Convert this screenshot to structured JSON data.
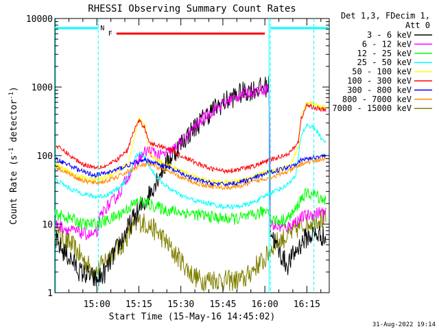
{
  "chart_data": {
    "type": "line",
    "title": "RHESSI Observing Summary Count Rates",
    "xlabel": "Start Time (15-May-16 14:45:02)",
    "ylabel_main": "Count Rate (s",
    "ylabel_sup1": "-1",
    "ylabel_mid": " detector",
    "ylabel_sup2": "-1",
    "ylabel_end": ")",
    "yscale": "log",
    "ylim": [
      1,
      10000
    ],
    "xlim_minutes": [
      0,
      98
    ],
    "y_ticks": [
      {
        "value": 1,
        "label": "1"
      },
      {
        "value": 10,
        "label": "10"
      },
      {
        "value": 100,
        "label": "100"
      },
      {
        "value": 1000,
        "label": "1000"
      },
      {
        "value": 10000,
        "label": "10000"
      }
    ],
    "x_ticks": [
      {
        "minute": 15,
        "label": "15:00"
      },
      {
        "minute": 30,
        "label": "15:15"
      },
      {
        "minute": 45,
        "label": "15:30"
      },
      {
        "minute": 60,
        "label": "15:45"
      },
      {
        "minute": 75,
        "label": "16:00"
      },
      {
        "minute": 90,
        "label": "16:15"
      }
    ],
    "legend_header": [
      "Det 1,3, FDecim 1,",
      "Att 0"
    ],
    "legend_position": "right",
    "series": [
      {
        "name": "3 - 6 keV",
        "color": "#000000",
        "points": [
          [
            0,
            6
          ],
          [
            3,
            4
          ],
          [
            6,
            3
          ],
          [
            9,
            2
          ],
          [
            12,
            1.8
          ],
          [
            15,
            1.5
          ],
          [
            18,
            2
          ],
          [
            20,
            3
          ],
          [
            24,
            6
          ],
          [
            28,
            12
          ],
          [
            32,
            20
          ],
          [
            35,
            35
          ],
          [
            38,
            60
          ],
          [
            42,
            100
          ],
          [
            46,
            170
          ],
          [
            50,
            260
          ],
          [
            54,
            380
          ],
          [
            58,
            520
          ],
          [
            62,
            650
          ],
          [
            66,
            800
          ],
          [
            70,
            900
          ],
          [
            74,
            980
          ],
          [
            76.5,
            1050
          ],
          [
            77,
            8
          ],
          [
            80,
            4
          ],
          [
            83,
            2.5
          ],
          [
            86,
            4
          ],
          [
            89,
            6
          ],
          [
            92,
            7
          ],
          [
            95,
            7
          ],
          [
            97,
            6
          ]
        ]
      },
      {
        "name": "6 - 12 keV",
        "color": "#ff00ff",
        "points": [
          [
            0,
            10
          ],
          [
            3,
            9
          ],
          [
            6,
            8
          ],
          [
            9,
            7.5
          ],
          [
            12,
            7
          ],
          [
            15,
            7
          ],
          [
            16,
            12
          ],
          [
            18,
            17
          ],
          [
            20,
            20
          ],
          [
            23,
            28
          ],
          [
            26,
            50
          ],
          [
            30,
            90
          ],
          [
            33,
            120
          ],
          [
            36,
            110
          ],
          [
            38,
            100
          ],
          [
            42,
            120
          ],
          [
            46,
            170
          ],
          [
            50,
            260
          ],
          [
            54,
            380
          ],
          [
            58,
            500
          ],
          [
            62,
            630
          ],
          [
            66,
            760
          ],
          [
            70,
            860
          ],
          [
            74,
            930
          ],
          [
            76.5,
            980
          ],
          [
            77,
            10
          ],
          [
            80,
            9
          ],
          [
            83,
            9
          ],
          [
            86,
            11
          ],
          [
            89,
            13
          ],
          [
            92,
            14
          ],
          [
            95,
            15
          ],
          [
            97,
            14
          ]
        ]
      },
      {
        "name": "12 - 25 keV",
        "color": "#00ff00",
        "points": [
          [
            0,
            14
          ],
          [
            3,
            13
          ],
          [
            6,
            12
          ],
          [
            10,
            10
          ],
          [
            14,
            10
          ],
          [
            18,
            11
          ],
          [
            22,
            13
          ],
          [
            26,
            17
          ],
          [
            30,
            22
          ],
          [
            33,
            20
          ],
          [
            36,
            18
          ],
          [
            40,
            16
          ],
          [
            45,
            15
          ],
          [
            50,
            14
          ],
          [
            55,
            13
          ],
          [
            60,
            12
          ],
          [
            65,
            12
          ],
          [
            70,
            13
          ],
          [
            74,
            15
          ],
          [
            76.5,
            17
          ],
          [
            77,
            12
          ],
          [
            80,
            11
          ],
          [
            83,
            12
          ],
          [
            86,
            16
          ],
          [
            88,
            24
          ],
          [
            90,
            28
          ],
          [
            93,
            27
          ],
          [
            95,
            24
          ],
          [
            97,
            22
          ]
        ]
      },
      {
        "name": "25 - 50 keV",
        "color": "#00ffff",
        "points": [
          [
            0,
            45
          ],
          [
            3,
            38
          ],
          [
            6,
            32
          ],
          [
            10,
            28
          ],
          [
            14,
            25
          ],
          [
            18,
            26
          ],
          [
            22,
            32
          ],
          [
            26,
            45
          ],
          [
            29,
            100
          ],
          [
            31,
            110
          ],
          [
            33,
            80
          ],
          [
            36,
            50
          ],
          [
            40,
            35
          ],
          [
            45,
            26
          ],
          [
            50,
            22
          ],
          [
            55,
            20
          ],
          [
            60,
            18
          ],
          [
            65,
            18
          ],
          [
            70,
            20
          ],
          [
            74,
            24
          ],
          [
            76.5,
            28
          ],
          [
            78,
            30
          ],
          [
            82,
            35
          ],
          [
            86,
            50
          ],
          [
            88,
            200
          ],
          [
            90,
            280
          ],
          [
            93,
            250
          ],
          [
            95,
            180
          ],
          [
            97,
            160
          ]
        ]
      },
      {
        "name": "50 - 100 keV",
        "color": "#ffff00",
        "points": [
          [
            0,
            75
          ],
          [
            3,
            65
          ],
          [
            6,
            55
          ],
          [
            10,
            48
          ],
          [
            14,
            45
          ],
          [
            18,
            48
          ],
          [
            22,
            58
          ],
          [
            26,
            75
          ],
          [
            28,
            150
          ],
          [
            30,
            340
          ],
          [
            32,
            280
          ],
          [
            34,
            100
          ],
          [
            37,
            85
          ],
          [
            40,
            75
          ],
          [
            45,
            60
          ],
          [
            50,
            50
          ],
          [
            55,
            42
          ],
          [
            60,
            40
          ],
          [
            65,
            42
          ],
          [
            70,
            48
          ],
          [
            74,
            55
          ],
          [
            76.5,
            58
          ],
          [
            80,
            62
          ],
          [
            84,
            70
          ],
          [
            87,
            140
          ],
          [
            88,
            350
          ],
          [
            90,
            620
          ],
          [
            93,
            560
          ],
          [
            95,
            520
          ],
          [
            97,
            500
          ]
        ]
      },
      {
        "name": "100 - 300 keV",
        "color": "#ff0000",
        "points": [
          [
            0,
            140
          ],
          [
            3,
            120
          ],
          [
            6,
            95
          ],
          [
            10,
            75
          ],
          [
            14,
            68
          ],
          [
            18,
            70
          ],
          [
            22,
            85
          ],
          [
            26,
            120
          ],
          [
            28,
            220
          ],
          [
            30,
            320
          ],
          [
            32,
            260
          ],
          [
            34,
            150
          ],
          [
            37,
            140
          ],
          [
            40,
            130
          ],
          [
            45,
            100
          ],
          [
            50,
            80
          ],
          [
            55,
            65
          ],
          [
            60,
            60
          ],
          [
            65,
            62
          ],
          [
            70,
            68
          ],
          [
            74,
            78
          ],
          [
            76.5,
            85
          ],
          [
            80,
            95
          ],
          [
            84,
            110
          ],
          [
            87,
            160
          ],
          [
            88,
            350
          ],
          [
            90,
            540
          ],
          [
            93,
            500
          ],
          [
            95,
            470
          ],
          [
            97,
            460
          ]
        ]
      },
      {
        "name": "300 - 800 keV",
        "color": "#0000ff",
        "points": [
          [
            0,
            90
          ],
          [
            3,
            80
          ],
          [
            6,
            70
          ],
          [
            10,
            58
          ],
          [
            14,
            52
          ],
          [
            18,
            55
          ],
          [
            22,
            62
          ],
          [
            26,
            72
          ],
          [
            30,
            82
          ],
          [
            33,
            85
          ],
          [
            36,
            78
          ],
          [
            40,
            68
          ],
          [
            45,
            55
          ],
          [
            50,
            45
          ],
          [
            55,
            40
          ],
          [
            60,
            38
          ],
          [
            65,
            40
          ],
          [
            70,
            45
          ],
          [
            74,
            52
          ],
          [
            76.5,
            57
          ],
          [
            80,
            62
          ],
          [
            84,
            70
          ],
          [
            88,
            85
          ],
          [
            90,
            90
          ],
          [
            93,
            95
          ],
          [
            95,
            98
          ],
          [
            97,
            100
          ]
        ]
      },
      {
        "name": "800 - 7000 keV",
        "color": "#ff8c00",
        "points": [
          [
            0,
            70
          ],
          [
            3,
            60
          ],
          [
            6,
            52
          ],
          [
            10,
            43
          ],
          [
            14,
            40
          ],
          [
            18,
            42
          ],
          [
            22,
            48
          ],
          [
            26,
            58
          ],
          [
            30,
            70
          ],
          [
            33,
            75
          ],
          [
            36,
            70
          ],
          [
            40,
            60
          ],
          [
            45,
            48
          ],
          [
            50,
            40
          ],
          [
            55,
            36
          ],
          [
            60,
            34
          ],
          [
            65,
            35
          ],
          [
            70,
            40
          ],
          [
            74,
            45
          ],
          [
            76.5,
            48
          ],
          [
            80,
            52
          ],
          [
            84,
            60
          ],
          [
            88,
            75
          ],
          [
            90,
            80
          ],
          [
            93,
            85
          ],
          [
            95,
            88
          ],
          [
            97,
            90
          ]
        ]
      },
      {
        "name": "7000 - 15000 keV",
        "color": "#808000",
        "points": [
          [
            0,
            8
          ],
          [
            3,
            6
          ],
          [
            6,
            5
          ],
          [
            9,
            3.5
          ],
          [
            12,
            2.5
          ],
          [
            15,
            2
          ],
          [
            18,
            3
          ],
          [
            21,
            4
          ],
          [
            24,
            5
          ],
          [
            27,
            8
          ],
          [
            30,
            11
          ],
          [
            33,
            10
          ],
          [
            36,
            8
          ],
          [
            39,
            6
          ],
          [
            42,
            4
          ],
          [
            45,
            3
          ],
          [
            48,
            2
          ],
          [
            52,
            1.5
          ],
          [
            56,
            1.6
          ],
          [
            60,
            1.5
          ],
          [
            64,
            1.5
          ],
          [
            68,
            1.6
          ],
          [
            72,
            2.5
          ],
          [
            75,
            3
          ],
          [
            76.5,
            4
          ],
          [
            78,
            5
          ],
          [
            81,
            6
          ],
          [
            84,
            7
          ],
          [
            87,
            9
          ],
          [
            90,
            10
          ],
          [
            93,
            12
          ],
          [
            95,
            12
          ],
          [
            97,
            11
          ]
        ]
      }
    ],
    "annotations": {
      "N_label": "N",
      "F_label": "F",
      "N_color": "#00ffff",
      "F_color": "#ff0000",
      "N_bars": [
        [
          0,
          15.5
        ],
        [
          77,
          98
        ]
      ],
      "F_bar": [
        22,
        75
      ],
      "cyan_dashed_lines": [
        15.5,
        77,
        92.5
      ],
      "cyan_solid_line": 76.5
    },
    "timestamp": "31-Aug-2022 19:14"
  }
}
